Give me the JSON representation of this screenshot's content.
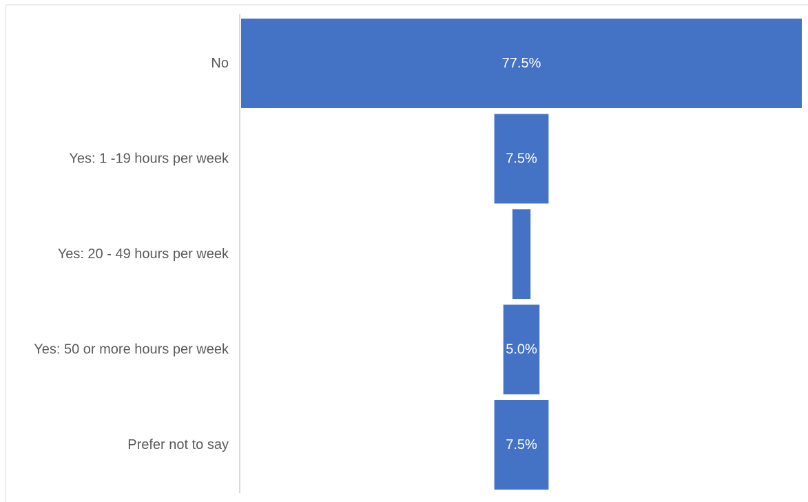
{
  "chart_data": {
    "type": "bar",
    "orientation": "horizontal",
    "layout": "funnel",
    "categories": [
      "No",
      "Yes: 1 -19 hours per week",
      "Yes: 20 - 49 hours per week",
      "Yes: 50 or more hours per week",
      "Prefer not to say"
    ],
    "values": [
      77.5,
      7.5,
      2.5,
      5.0,
      7.5
    ],
    "data_labels": [
      "77.5%",
      "7.5%",
      "",
      "5.0%",
      "7.5%"
    ],
    "unit": "%",
    "title": "",
    "xlabel": "",
    "ylabel": "",
    "xlim": [
      0,
      77.5
    ],
    "grid": false,
    "legend": "none",
    "bar_color": "#4472C4",
    "label_color": "#595959",
    "data_label_color": "#FFFFFF",
    "axis_color": "#D9D9D9"
  }
}
